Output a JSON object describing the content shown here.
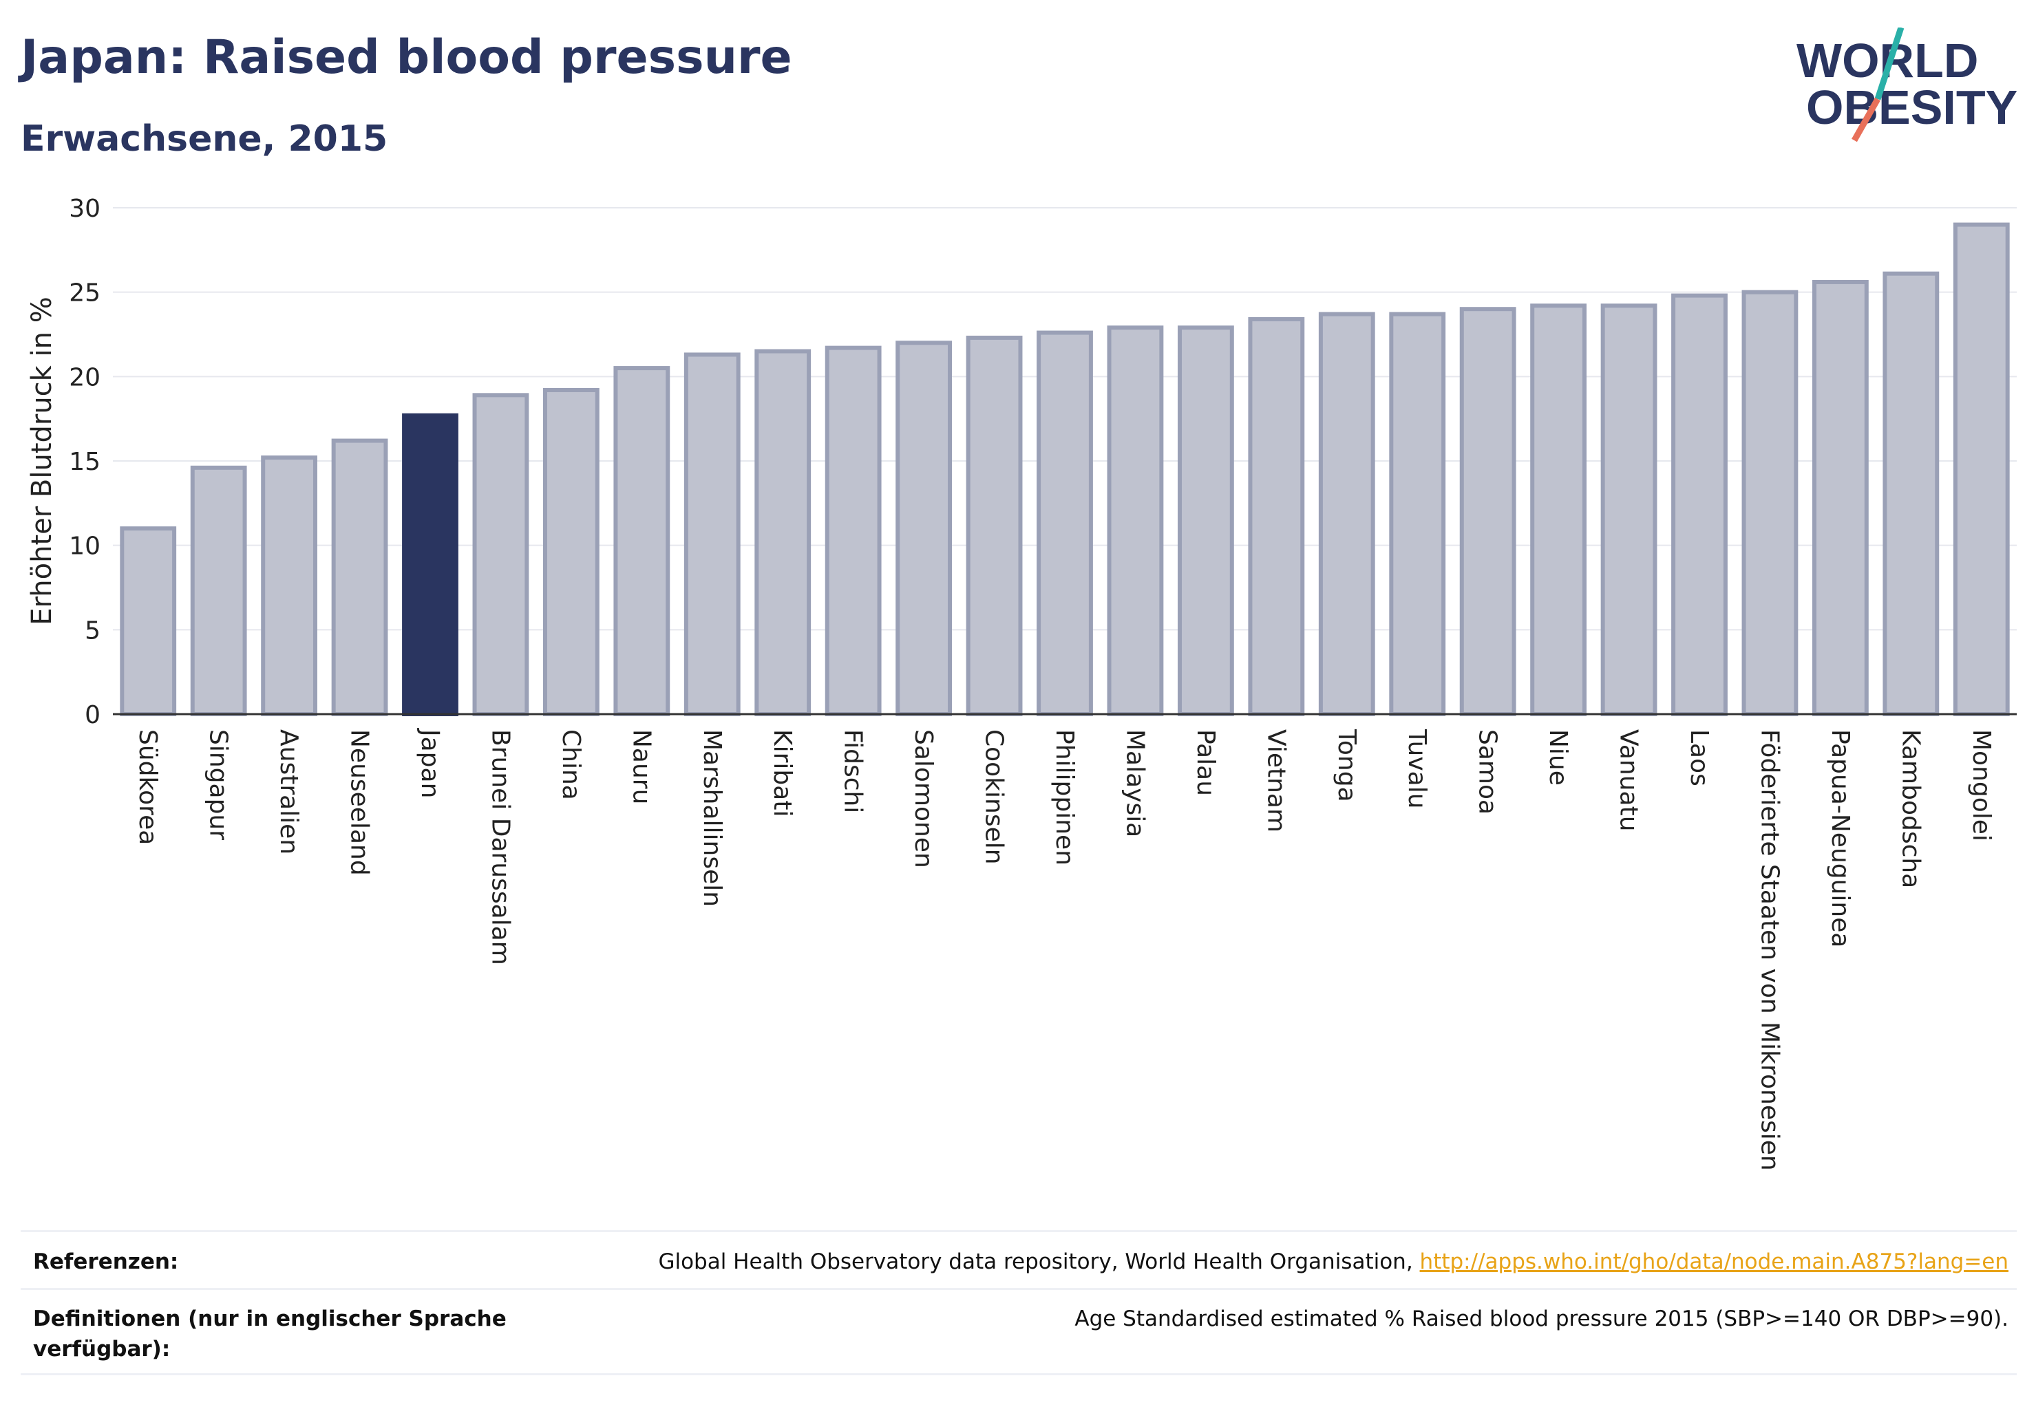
{
  "header": {
    "title": "Japan: Raised blood pressure",
    "subtitle": "Erwachsene, 2015"
  },
  "logo": {
    "line1": "WORLD",
    "line2": "OBESITY",
    "slash_colors": [
      "#2ab0a8",
      "#e8705a"
    ],
    "text_color": "#2a3560"
  },
  "chart_data": {
    "type": "bar",
    "ylabel": "Erhöhter Blutdruck in %",
    "ylim": [
      0,
      30
    ],
    "yticks": [
      0,
      5,
      10,
      15,
      20,
      25,
      30
    ],
    "grid": true,
    "highlight": "Japan",
    "colors": {
      "bar": "#bfc2cf",
      "bar_border": "#9aa0b6",
      "highlight": "#2a3560"
    },
    "categories": [
      "Südkorea",
      "Singapur",
      "Australien",
      "Neuseeland",
      "Japan",
      "Brunei Darussalam",
      "China",
      "Nauru",
      "Marshallinseln",
      "Kiribati",
      "Fidschi",
      "Salomonen",
      "Cookinseln",
      "Philippinen",
      "Malaysia",
      "Palau",
      "Vietnam",
      "Tonga",
      "Tuvalu",
      "Samoa",
      "Niue",
      "Vanuatu",
      "Laos",
      "Föderierte Staaten von Mikronesien",
      "Papua-Neuguinea",
      "Kambodscha",
      "Mongolei"
    ],
    "values": [
      11.0,
      14.6,
      15.2,
      16.2,
      17.7,
      18.9,
      19.2,
      20.5,
      21.3,
      21.5,
      21.7,
      22.0,
      22.3,
      22.6,
      22.9,
      22.9,
      23.4,
      23.7,
      23.7,
      24.0,
      24.2,
      24.2,
      24.8,
      25.0,
      25.6,
      26.1,
      29.0
    ]
  },
  "footer": {
    "ref_label": "Referenzen:",
    "ref_text": "Global Health Observatory data repository, World Health Organisation, ",
    "ref_link": "http://apps.who.int/gho/data/node.main.A875?lang=en",
    "def_label": "Definitionen (nur in englischer Sprache verfügbar):",
    "def_text": "Age Standardised estimated % Raised blood pressure 2015 (SBP>=140 OR DBP>=90)."
  }
}
